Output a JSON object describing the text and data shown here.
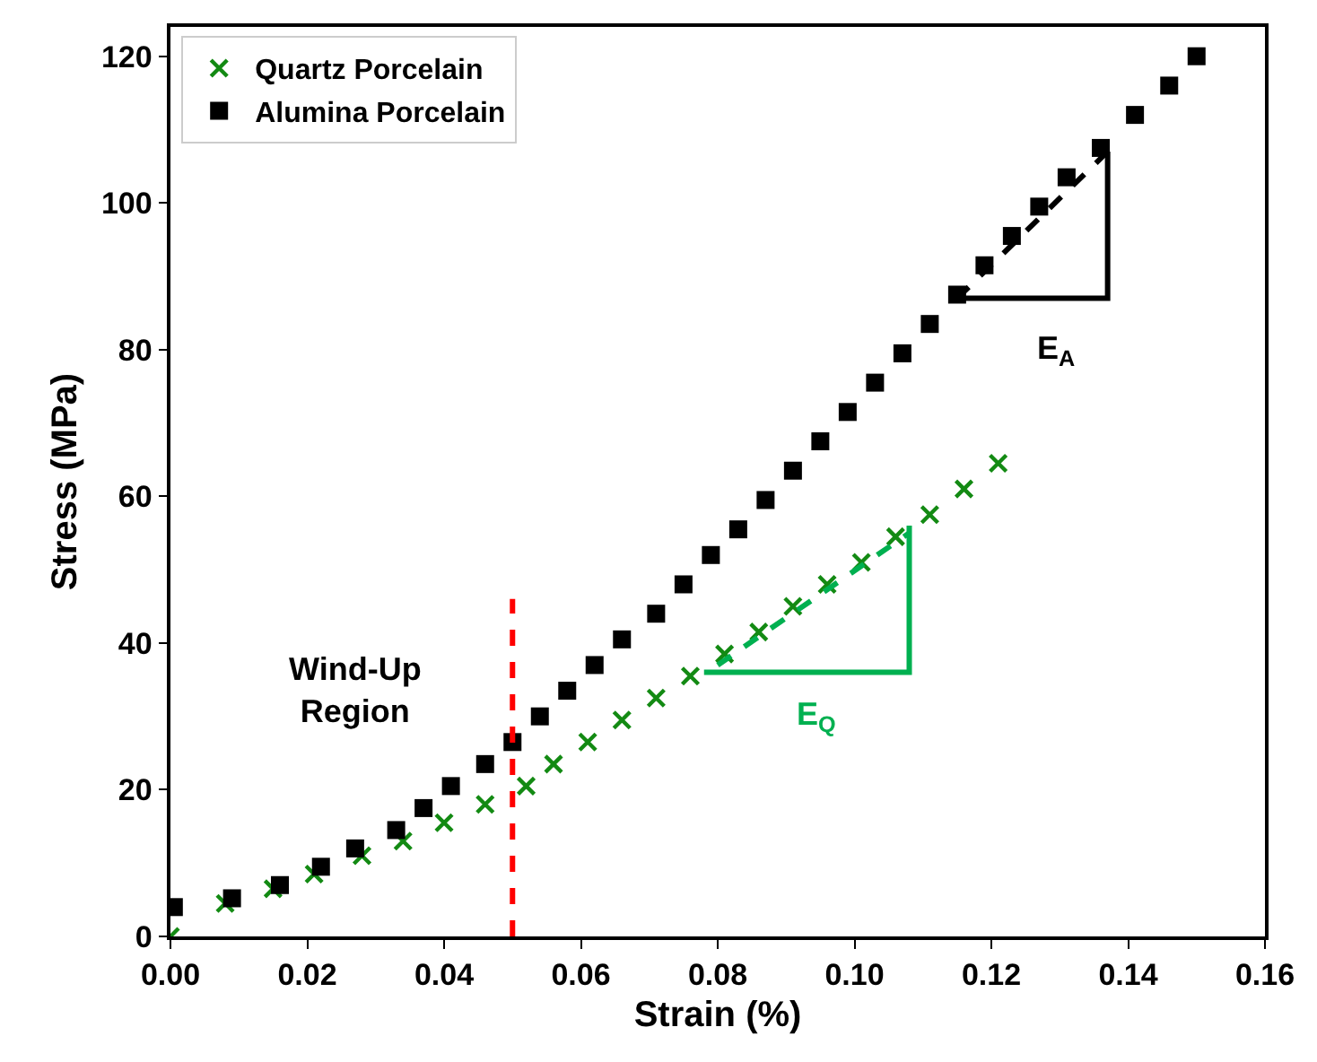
{
  "chart_data": {
    "type": "scatter",
    "xlabel": "Strain (%)",
    "ylabel": "Stress (MPa)",
    "xlim": [
      0,
      0.16
    ],
    "xticks": [
      {
        "value": 0,
        "label": "0.00"
      },
      {
        "value": 0.02,
        "label": "0.02"
      },
      {
        "value": 0.04,
        "label": "0.04"
      },
      {
        "value": 0.06,
        "label": "0.06"
      },
      {
        "value": 0.08,
        "label": "0.08"
      },
      {
        "value": 0.1,
        "label": "0.10"
      },
      {
        "value": 0.12,
        "label": "0.12"
      },
      {
        "value": 0.14,
        "label": "0.14"
      },
      {
        "value": 0.16,
        "label": "0.16"
      }
    ],
    "ylim": [
      0,
      124
    ],
    "yticks": [
      0,
      20,
      40,
      60,
      80,
      100,
      120
    ],
    "legend": "top left",
    "series": [
      {
        "name": "Quartz Porcelain",
        "marker": "cross",
        "color": "#138a13",
        "x": [
          0,
          0.008,
          0.015,
          0.021,
          0.028,
          0.034,
          0.04,
          0.046,
          0.052,
          0.056,
          0.061,
          0.066,
          0.071,
          0.076,
          0.081,
          0.086,
          0.091,
          0.096,
          0.101,
          0.106,
          0.111,
          0.116,
          0.121
        ],
        "values": [
          0,
          4.5,
          6.5,
          8.5,
          11,
          13,
          15.5,
          18,
          20.5,
          23.5,
          26.5,
          29.5,
          32.5,
          35.5,
          38.5,
          41.5,
          45,
          48,
          51,
          54.5,
          57.5,
          61,
          64.5
        ]
      },
      {
        "name": "Alumina Porcelain",
        "marker": "square",
        "color": "#000000",
        "x": [
          0.0005,
          0.009,
          0.016,
          0.022,
          0.027,
          0.033,
          0.037,
          0.041,
          0.046,
          0.05,
          0.054,
          0.058,
          0.062,
          0.066,
          0.071,
          0.075,
          0.079,
          0.083,
          0.087,
          0.091,
          0.095,
          0.099,
          0.103,
          0.107,
          0.111,
          0.115,
          0.119,
          0.123,
          0.127,
          0.131,
          0.136,
          0.141,
          0.146,
          0.15
        ],
        "values": [
          4,
          5.2,
          7,
          9.5,
          12,
          14.5,
          17.5,
          20.5,
          23.5,
          26.5,
          30,
          33.5,
          37,
          40.5,
          44,
          48,
          52,
          55.5,
          59.5,
          63.5,
          67.5,
          71.5,
          75.5,
          79.5,
          83.5,
          87.5,
          91.5,
          95.5,
          99.5,
          103.5,
          107.5,
          112,
          116,
          120
        ]
      },
      {
        "type": "line",
        "line_style": "dashed",
        "color": "#ff0000",
        "x": [
          0.05,
          0.05
        ],
        "values": [
          0,
          46
        ]
      },
      {
        "type": "line",
        "line_style": "dashed",
        "color": "#000000",
        "x": [
          0.115,
          0.137
        ],
        "values": [
          87,
          107
        ]
      },
      {
        "type": "line",
        "line_style": "solid",
        "color": "#000000",
        "x": [
          0.115,
          0.137,
          0.137
        ],
        "values": [
          87,
          87,
          107
        ]
      },
      {
        "type": "line",
        "line_style": "dashed",
        "color": "#00b050",
        "x": [
          0.08,
          0.108
        ],
        "values": [
          37,
          55
        ]
      },
      {
        "type": "line",
        "line_style": "solid",
        "color": "#00b050",
        "x": [
          0.078,
          0.108,
          0.108
        ],
        "values": [
          36,
          36,
          56
        ]
      }
    ],
    "annotations": [
      "Wind-Up\nRegion",
      "E$_{A}$",
      "E$_{Q}$"
    ]
  }
}
